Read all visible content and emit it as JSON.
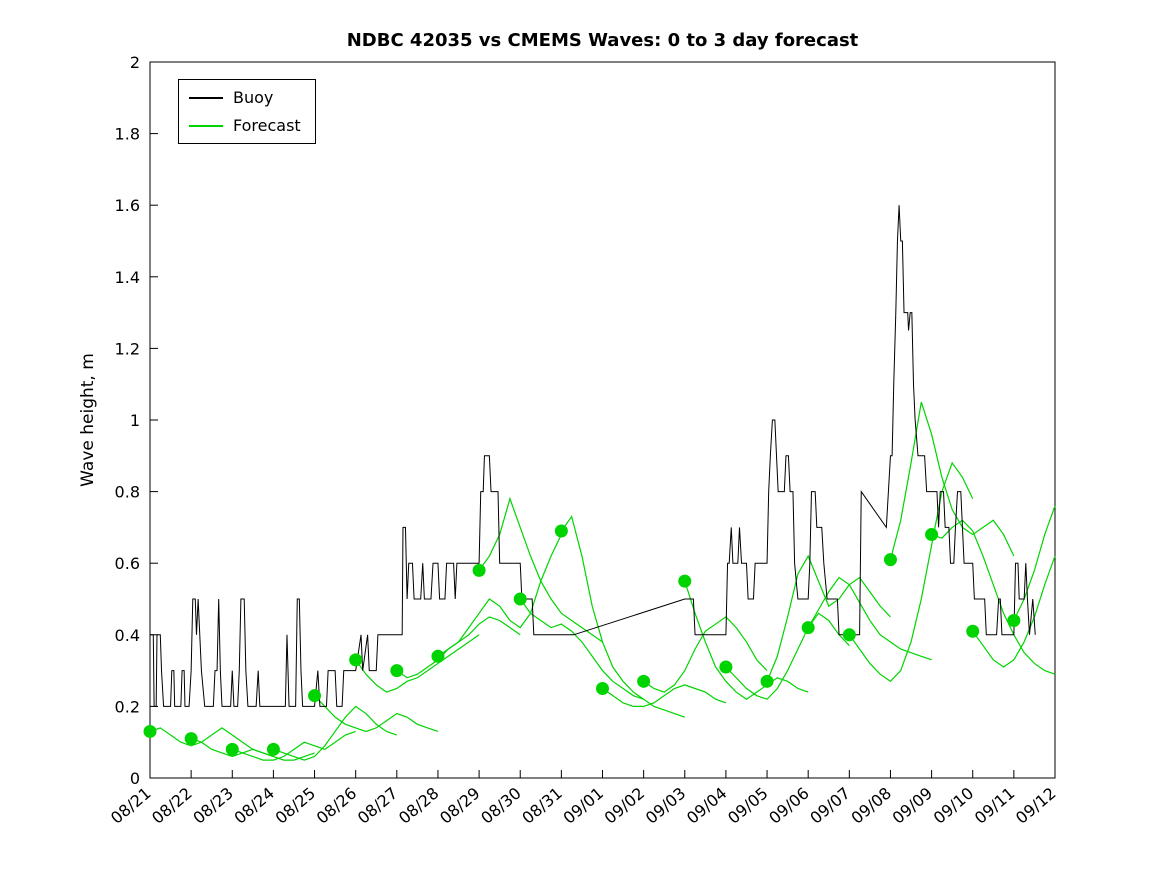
{
  "chart_data": {
    "type": "line",
    "title": "NDBC 42035 vs CMEMS Waves: 0 to 3 day forecast",
    "xlabel": "",
    "ylabel": "Wave height, m",
    "ylim": [
      0,
      2
    ],
    "yticks": [
      0,
      0.2,
      0.4,
      0.6,
      0.8,
      1,
      1.2,
      1.4,
      1.6,
      1.8,
      2
    ],
    "ytick_labels": [
      "0",
      "0.2",
      "0.4",
      "0.6",
      "0.8",
      "1",
      "1.2",
      "1.4",
      "1.6",
      "1.8",
      "2"
    ],
    "xtick_labels": [
      "08/21",
      "08/22",
      "08/23",
      "08/24",
      "08/25",
      "08/26",
      "08/27",
      "08/28",
      "08/29",
      "08/30",
      "08/31",
      "09/01",
      "09/02",
      "09/03",
      "09/04",
      "09/05",
      "09/06",
      "09/07",
      "09/08",
      "09/09",
      "09/10",
      "09/11",
      "09/12"
    ],
    "xlim_days": [
      0,
      22
    ],
    "grid": false,
    "legend_position": "top-left",
    "buoy": {
      "name": "Buoy",
      "color": "#000000",
      "points": [
        [
          0.0,
          0.4
        ],
        [
          0.08,
          0.4
        ],
        [
          0.1,
          0.2
        ],
        [
          0.15,
          0.2
        ],
        [
          0.17,
          0.4
        ],
        [
          0.25,
          0.4
        ],
        [
          0.28,
          0.3
        ],
        [
          0.33,
          0.2
        ],
        [
          0.5,
          0.2
        ],
        [
          0.53,
          0.3
        ],
        [
          0.58,
          0.3
        ],
        [
          0.6,
          0.2
        ],
        [
          0.75,
          0.2
        ],
        [
          0.78,
          0.3
        ],
        [
          0.83,
          0.3
        ],
        [
          0.85,
          0.2
        ],
        [
          0.95,
          0.2
        ],
        [
          1.0,
          0.3
        ],
        [
          1.04,
          0.5
        ],
        [
          1.1,
          0.5
        ],
        [
          1.13,
          0.4
        ],
        [
          1.17,
          0.5
        ],
        [
          1.21,
          0.4
        ],
        [
          1.25,
          0.3
        ],
        [
          1.33,
          0.2
        ],
        [
          1.54,
          0.2
        ],
        [
          1.58,
          0.3
        ],
        [
          1.63,
          0.3
        ],
        [
          1.67,
          0.5
        ],
        [
          1.71,
          0.3
        ],
        [
          1.75,
          0.2
        ],
        [
          1.96,
          0.2
        ],
        [
          2.0,
          0.3
        ],
        [
          2.04,
          0.2
        ],
        [
          2.13,
          0.2
        ],
        [
          2.17,
          0.3
        ],
        [
          2.21,
          0.5
        ],
        [
          2.29,
          0.5
        ],
        [
          2.33,
          0.3
        ],
        [
          2.38,
          0.2
        ],
        [
          2.58,
          0.2
        ],
        [
          2.63,
          0.3
        ],
        [
          2.67,
          0.2
        ],
        [
          2.96,
          0.2
        ],
        [
          3.0,
          0.2
        ],
        [
          3.29,
          0.2
        ],
        [
          3.33,
          0.4
        ],
        [
          3.38,
          0.2
        ],
        [
          3.54,
          0.2
        ],
        [
          3.58,
          0.5
        ],
        [
          3.63,
          0.5
        ],
        [
          3.67,
          0.3
        ],
        [
          3.71,
          0.2
        ],
        [
          3.96,
          0.2
        ],
        [
          4.0,
          0.2
        ],
        [
          4.08,
          0.3
        ],
        [
          4.13,
          0.2
        ],
        [
          4.29,
          0.2
        ],
        [
          4.33,
          0.3
        ],
        [
          4.5,
          0.3
        ],
        [
          4.54,
          0.2
        ],
        [
          4.67,
          0.2
        ],
        [
          4.71,
          0.3
        ],
        [
          4.96,
          0.3
        ],
        [
          5.0,
          0.3
        ],
        [
          5.13,
          0.4
        ],
        [
          5.17,
          0.3
        ],
        [
          5.29,
          0.4
        ],
        [
          5.33,
          0.3
        ],
        [
          5.5,
          0.3
        ],
        [
          5.54,
          0.4
        ],
        [
          5.96,
          0.4
        ],
        [
          6.0,
          0.4
        ],
        [
          6.13,
          0.4
        ],
        [
          6.15,
          0.7
        ],
        [
          6.21,
          0.7
        ],
        [
          6.25,
          0.5
        ],
        [
          6.29,
          0.6
        ],
        [
          6.38,
          0.6
        ],
        [
          6.42,
          0.5
        ],
        [
          6.58,
          0.5
        ],
        [
          6.63,
          0.6
        ],
        [
          6.67,
          0.5
        ],
        [
          6.83,
          0.5
        ],
        [
          6.88,
          0.6
        ],
        [
          6.96,
          0.6
        ],
        [
          7.0,
          0.6
        ],
        [
          7.04,
          0.5
        ],
        [
          7.17,
          0.5
        ],
        [
          7.21,
          0.6
        ],
        [
          7.38,
          0.6
        ],
        [
          7.42,
          0.5
        ],
        [
          7.46,
          0.6
        ],
        [
          7.96,
          0.6
        ],
        [
          8.0,
          0.6
        ],
        [
          8.04,
          0.8
        ],
        [
          8.1,
          0.8
        ],
        [
          8.13,
          0.9
        ],
        [
          8.25,
          0.9
        ],
        [
          8.29,
          0.8
        ],
        [
          8.46,
          0.8
        ],
        [
          8.5,
          0.6
        ],
        [
          8.96,
          0.6
        ],
        [
          9.0,
          0.6
        ],
        [
          9.04,
          0.5
        ],
        [
          9.29,
          0.5
        ],
        [
          9.33,
          0.4
        ],
        [
          9.63,
          0.4
        ],
        [
          10.0,
          0.4
        ],
        [
          10.3,
          0.4
        ],
        [
          13.0,
          0.5
        ],
        [
          13.21,
          0.5
        ],
        [
          13.25,
          0.4
        ],
        [
          13.96,
          0.4
        ],
        [
          14.0,
          0.4
        ],
        [
          14.04,
          0.6
        ],
        [
          14.08,
          0.6
        ],
        [
          14.13,
          0.7
        ],
        [
          14.17,
          0.6
        ],
        [
          14.29,
          0.6
        ],
        [
          14.33,
          0.7
        ],
        [
          14.38,
          0.6
        ],
        [
          14.5,
          0.6
        ],
        [
          14.54,
          0.5
        ],
        [
          14.67,
          0.5
        ],
        [
          14.71,
          0.6
        ],
        [
          14.96,
          0.6
        ],
        [
          15.0,
          0.6
        ],
        [
          15.04,
          0.8
        ],
        [
          15.08,
          0.9
        ],
        [
          15.13,
          1.0
        ],
        [
          15.19,
          1.0
        ],
        [
          15.23,
          0.9
        ],
        [
          15.27,
          0.8
        ],
        [
          15.42,
          0.8
        ],
        [
          15.46,
          0.9
        ],
        [
          15.52,
          0.9
        ],
        [
          15.56,
          0.8
        ],
        [
          15.63,
          0.8
        ],
        [
          15.67,
          0.6
        ],
        [
          15.75,
          0.5
        ],
        [
          15.96,
          0.5
        ],
        [
          16.0,
          0.5
        ],
        [
          16.04,
          0.6
        ],
        [
          16.08,
          0.8
        ],
        [
          16.17,
          0.8
        ],
        [
          16.21,
          0.7
        ],
        [
          16.33,
          0.7
        ],
        [
          16.38,
          0.6
        ],
        [
          16.46,
          0.5
        ],
        [
          16.71,
          0.5
        ],
        [
          16.75,
          0.4
        ],
        [
          16.96,
          0.4
        ],
        [
          17.0,
          0.4
        ],
        [
          17.25,
          0.4
        ],
        [
          17.29,
          0.8
        ],
        [
          17.9,
          0.7
        ],
        [
          18.0,
          0.9
        ],
        [
          18.04,
          0.9
        ],
        [
          18.08,
          1.1
        ],
        [
          18.13,
          1.3
        ],
        [
          18.17,
          1.5
        ],
        [
          18.21,
          1.6
        ],
        [
          18.25,
          1.5
        ],
        [
          18.29,
          1.5
        ],
        [
          18.33,
          1.3
        ],
        [
          18.42,
          1.3
        ],
        [
          18.44,
          1.25
        ],
        [
          18.48,
          1.3
        ],
        [
          18.52,
          1.3
        ],
        [
          18.56,
          1.1
        ],
        [
          18.6,
          1.0
        ],
        [
          18.67,
          0.9
        ],
        [
          18.83,
          0.9
        ],
        [
          18.88,
          0.8
        ],
        [
          18.96,
          0.8
        ],
        [
          19.0,
          0.8
        ],
        [
          19.13,
          0.8
        ],
        [
          19.17,
          0.7
        ],
        [
          19.21,
          0.8
        ],
        [
          19.29,
          0.8
        ],
        [
          19.33,
          0.7
        ],
        [
          19.42,
          0.7
        ],
        [
          19.46,
          0.6
        ],
        [
          19.54,
          0.6
        ],
        [
          19.58,
          0.7
        ],
        [
          19.63,
          0.8
        ],
        [
          19.71,
          0.8
        ],
        [
          19.75,
          0.7
        ],
        [
          19.79,
          0.6
        ],
        [
          19.96,
          0.6
        ],
        [
          20.0,
          0.6
        ],
        [
          20.04,
          0.5
        ],
        [
          20.29,
          0.5
        ],
        [
          20.33,
          0.4
        ],
        [
          20.58,
          0.4
        ],
        [
          20.63,
          0.5
        ],
        [
          20.67,
          0.5
        ],
        [
          20.71,
          0.4
        ],
        [
          20.96,
          0.4
        ],
        [
          21.0,
          0.4
        ],
        [
          21.04,
          0.6
        ],
        [
          21.1,
          0.6
        ],
        [
          21.13,
          0.5
        ],
        [
          21.25,
          0.5
        ],
        [
          21.29,
          0.6
        ],
        [
          21.33,
          0.5
        ],
        [
          21.38,
          0.4
        ],
        [
          21.46,
          0.5
        ],
        [
          21.52,
          0.4
        ]
      ]
    },
    "forecasts": {
      "name": "Forecast",
      "color": "#00d400",
      "dt_days": 0.25,
      "tracks": [
        {
          "start_day": 0,
          "values": [
            0.13,
            0.14,
            0.12,
            0.1,
            0.09,
            0.1,
            0.12,
            0.14,
            0.12,
            0.1,
            0.08,
            0.07,
            0.06
          ]
        },
        {
          "start_day": 1,
          "values": [
            0.11,
            0.1,
            0.08,
            0.07,
            0.06,
            0.07,
            0.08,
            0.07,
            0.06,
            0.05,
            0.05,
            0.06,
            0.07
          ]
        },
        {
          "start_day": 2,
          "values": [
            0.08,
            0.07,
            0.06,
            0.05,
            0.05,
            0.06,
            0.08,
            0.1,
            0.09,
            0.08,
            0.1,
            0.12,
            0.13
          ]
        },
        {
          "start_day": 3,
          "values": [
            0.08,
            0.07,
            0.06,
            0.05,
            0.06,
            0.09,
            0.13,
            0.17,
            0.2,
            0.18,
            0.15,
            0.13,
            0.12
          ]
        },
        {
          "start_day": 4,
          "values": [
            0.23,
            0.2,
            0.17,
            0.15,
            0.14,
            0.13,
            0.14,
            0.16,
            0.18,
            0.17,
            0.15,
            0.14,
            0.13
          ]
        },
        {
          "start_day": 5,
          "values": [
            0.33,
            0.29,
            0.26,
            0.24,
            0.25,
            0.27,
            0.28,
            0.3,
            0.32,
            0.34,
            0.36,
            0.38,
            0.4
          ]
        },
        {
          "start_day": 6,
          "values": [
            0.3,
            0.28,
            0.29,
            0.31,
            0.33,
            0.36,
            0.38,
            0.4,
            0.43,
            0.45,
            0.44,
            0.42,
            0.4
          ]
        },
        {
          "start_day": 7,
          "values": [
            0.34,
            0.36,
            0.38,
            0.42,
            0.46,
            0.5,
            0.48,
            0.44,
            0.42,
            0.46,
            0.55,
            0.62,
            0.68
          ]
        },
        {
          "start_day": 8,
          "values": [
            0.58,
            0.62,
            0.68,
            0.78,
            0.7,
            0.62,
            0.55,
            0.5,
            0.46,
            0.44,
            0.42,
            0.4,
            0.38
          ]
        },
        {
          "start_day": 9,
          "values": [
            0.5,
            0.46,
            0.44,
            0.42,
            0.43,
            0.41,
            0.38,
            0.34,
            0.3,
            0.27,
            0.25,
            0.23,
            0.22
          ]
        },
        {
          "start_day": 10,
          "values": [
            0.69,
            0.73,
            0.62,
            0.48,
            0.38,
            0.31,
            0.27,
            0.24,
            0.22,
            0.2,
            0.19,
            0.18,
            0.17
          ]
        },
        {
          "start_day": 11,
          "values": [
            0.25,
            0.23,
            0.21,
            0.2,
            0.2,
            0.21,
            0.23,
            0.25,
            0.26,
            0.25,
            0.24,
            0.22,
            0.21
          ]
        },
        {
          "start_day": 12,
          "values": [
            0.27,
            0.25,
            0.24,
            0.26,
            0.3,
            0.36,
            0.41,
            0.43,
            0.45,
            0.42,
            0.38,
            0.33,
            0.3
          ]
        },
        {
          "start_day": 13,
          "values": [
            0.55,
            0.46,
            0.38,
            0.31,
            0.27,
            0.24,
            0.22,
            0.24,
            0.26,
            0.28,
            0.27,
            0.25,
            0.24
          ]
        },
        {
          "start_day": 14,
          "values": [
            0.31,
            0.28,
            0.25,
            0.23,
            0.22,
            0.25,
            0.3,
            0.36,
            0.42,
            0.46,
            0.44,
            0.4,
            0.37
          ]
        },
        {
          "start_day": 15,
          "values": [
            0.27,
            0.34,
            0.45,
            0.57,
            0.62,
            0.55,
            0.48,
            0.5,
            0.54,
            0.56,
            0.52,
            0.48,
            0.45
          ]
        },
        {
          "start_day": 16,
          "values": [
            0.42,
            0.47,
            0.52,
            0.56,
            0.54,
            0.49,
            0.44,
            0.4,
            0.38,
            0.36,
            0.35,
            0.34,
            0.33
          ]
        },
        {
          "start_day": 17,
          "values": [
            0.4,
            0.36,
            0.32,
            0.29,
            0.27,
            0.3,
            0.38,
            0.5,
            0.65,
            0.8,
            0.88,
            0.84,
            0.78
          ]
        },
        {
          "start_day": 18,
          "values": [
            0.61,
            0.72,
            0.88,
            1.05,
            0.96,
            0.84,
            0.75,
            0.7,
            0.68,
            0.7,
            0.72,
            0.68,
            0.62
          ]
        },
        {
          "start_day": 19,
          "values": [
            0.68,
            0.67,
            0.7,
            0.72,
            0.69,
            0.62,
            0.54,
            0.46,
            0.4,
            0.35,
            0.32,
            0.3,
            0.29
          ]
        },
        {
          "start_day": 20,
          "values": [
            0.41,
            0.37,
            0.33,
            0.31,
            0.33,
            0.38,
            0.45,
            0.54,
            0.62,
            0.68,
            0.72,
            0.7,
            0.66
          ]
        },
        {
          "start_day": 21,
          "values": [
            0.44,
            0.5,
            0.58,
            0.68,
            0.76,
            0.78,
            0.74,
            0.7,
            0.72
          ]
        }
      ]
    }
  }
}
